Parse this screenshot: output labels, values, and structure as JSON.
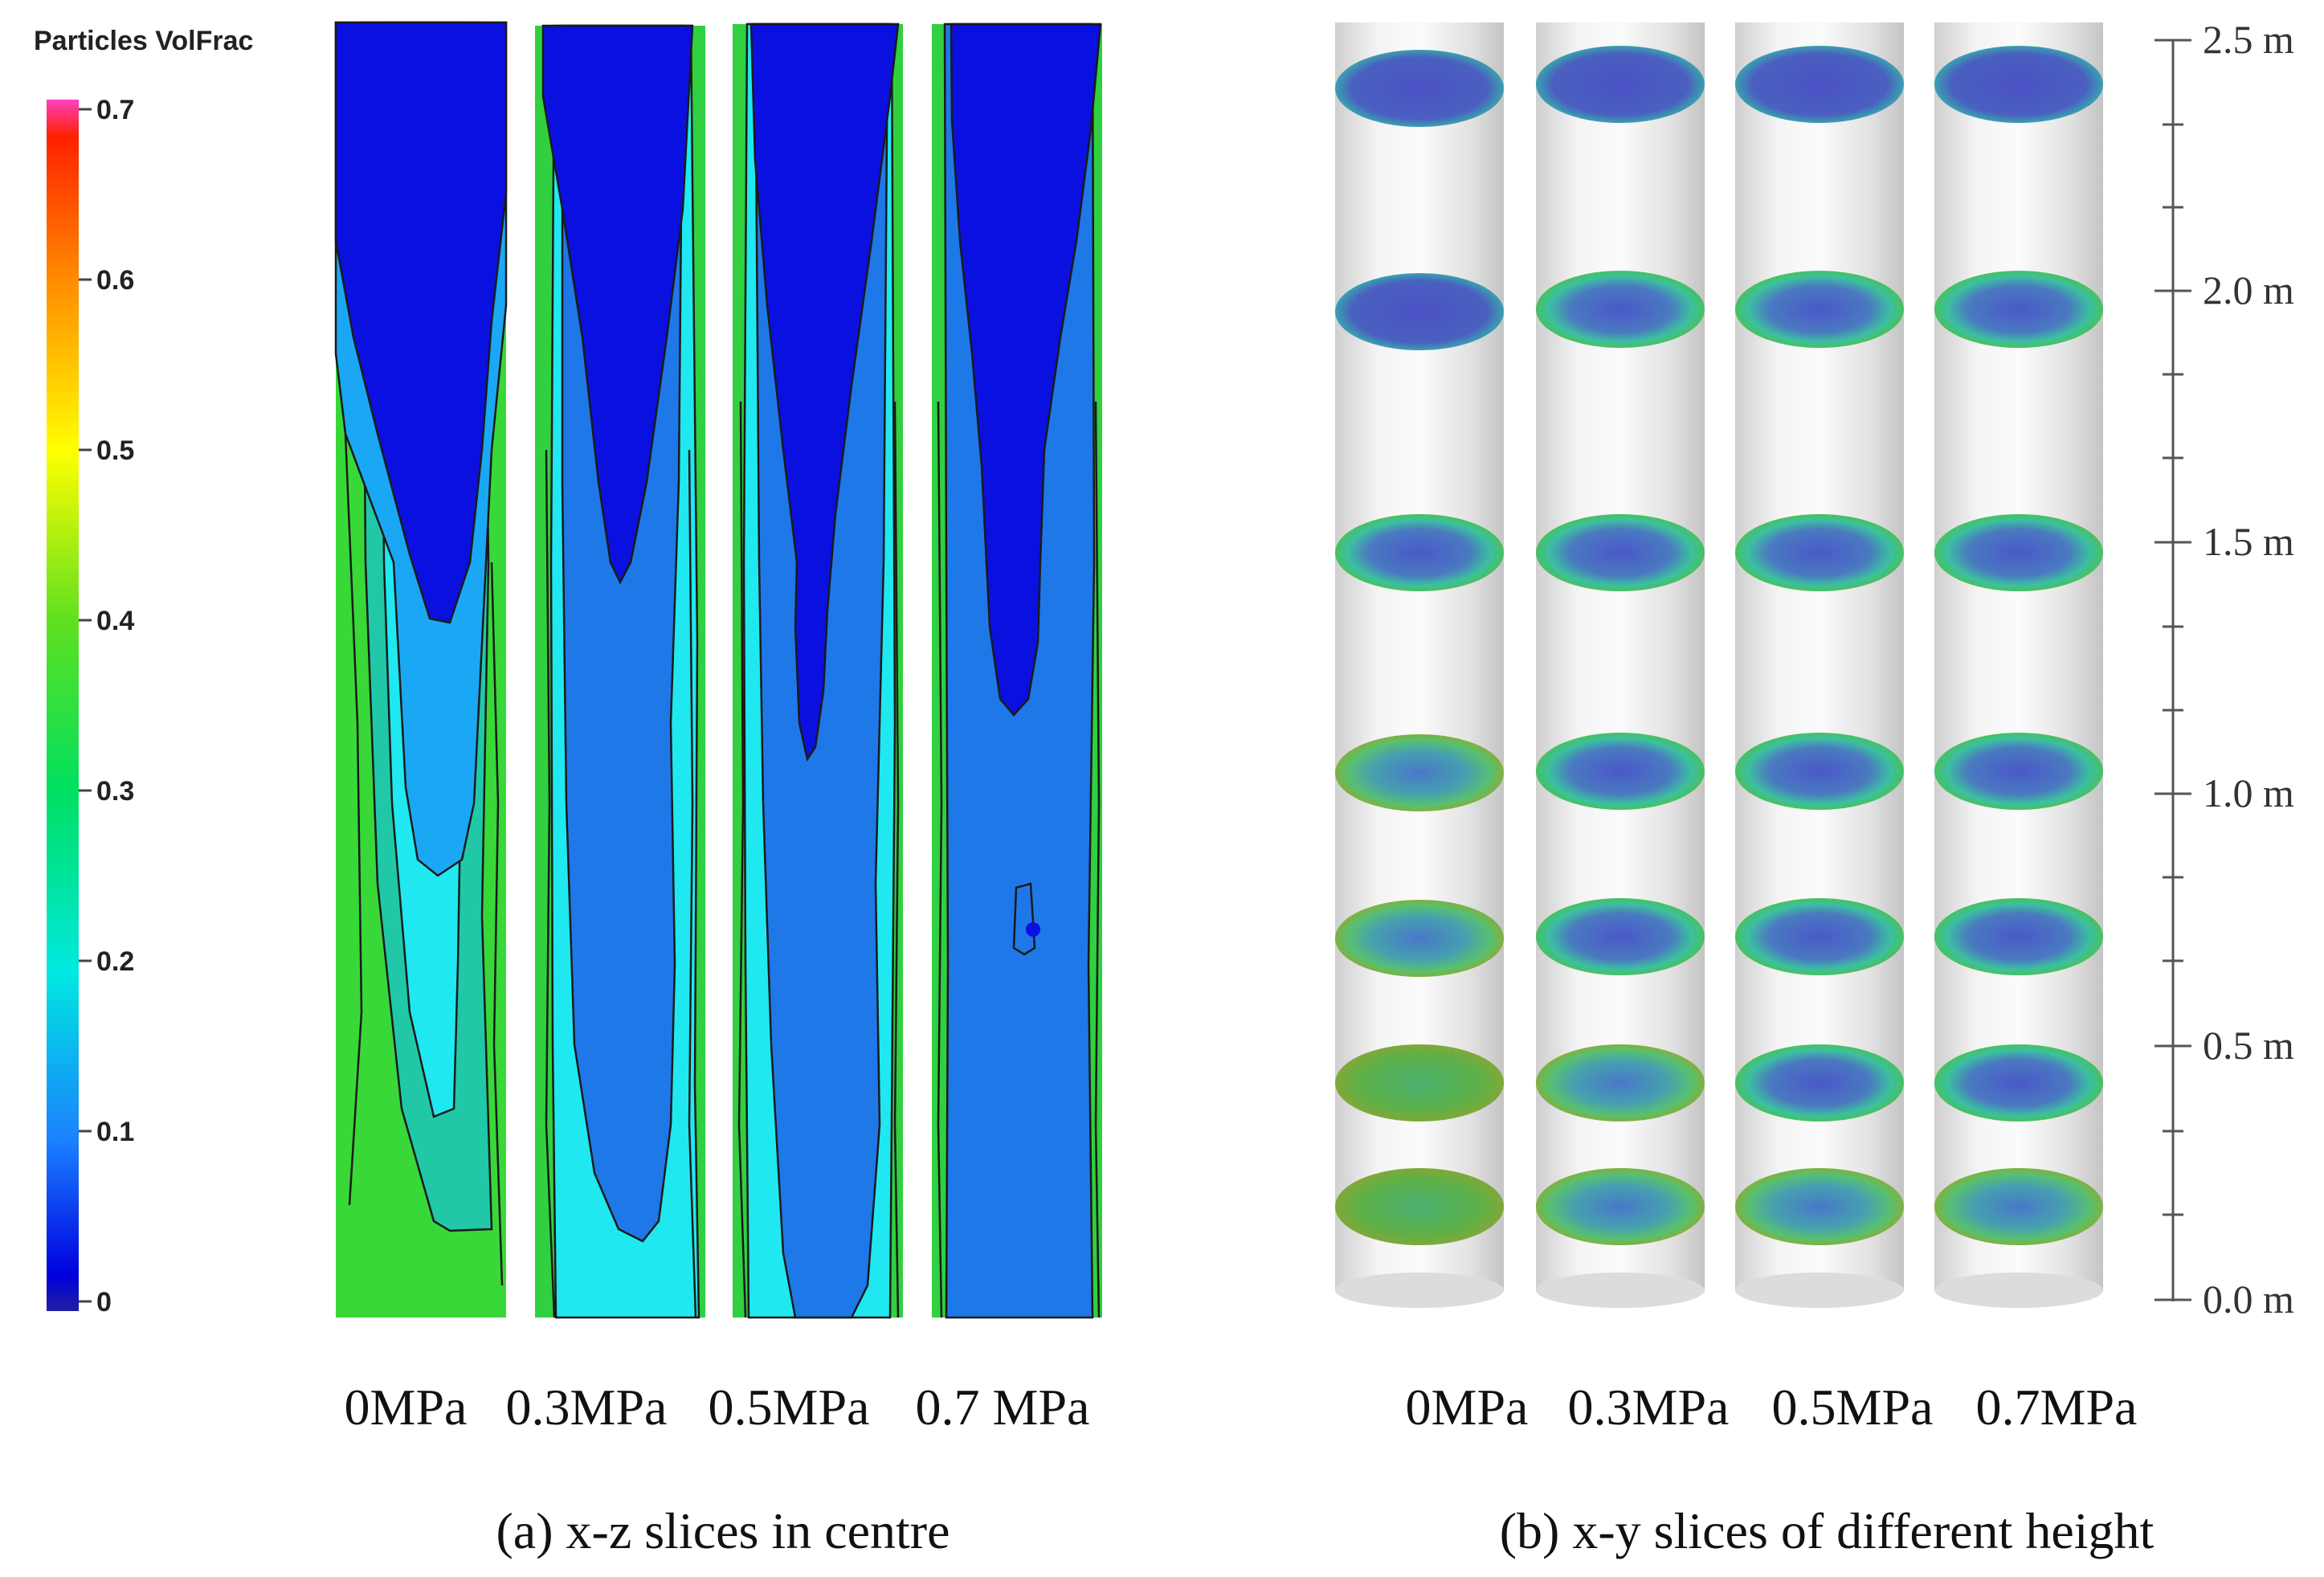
{
  "legend": {
    "title": "Particles VolFrac",
    "ticks": [
      "0.7",
      "0.6",
      "0.5",
      "0.4",
      "0.3",
      "0.2",
      "0.1",
      "0"
    ],
    "colors": [
      "#ff40c0",
      "#ff2000",
      "#ff8c00",
      "#ffff00",
      "#60e020",
      "#00e060",
      "#00e8e0",
      "#1a80ff",
      "#0000e0",
      "#2020a0"
    ]
  },
  "panel_a": {
    "labels": [
      "0MPa",
      "0.3MPa",
      "0.5MPa",
      "0.7 MPa"
    ],
    "caption": "(a) x-z slices in centre"
  },
  "panel_b": {
    "labels": [
      "0MPa",
      "0.3MPa",
      "0.5MPa",
      "0.7MPa"
    ],
    "caption": "(b) x-y slices of different height",
    "height_scale": [
      "2.5 m",
      "2.0 m",
      "1.5 m",
      "1.0 m",
      "0.5 m",
      "0.0 m"
    ]
  },
  "colors": {
    "dark_blue": "#0a10e0",
    "mid_blue": "#1e78e8",
    "light_blue": "#1aa8f5",
    "cyan": "#20e8f0",
    "green": "#30d040",
    "yellow_green": "#80e020",
    "cylinder": "#e6e6e6",
    "slice_core": "#4658c0",
    "slice_rim": "#3ec080"
  }
}
